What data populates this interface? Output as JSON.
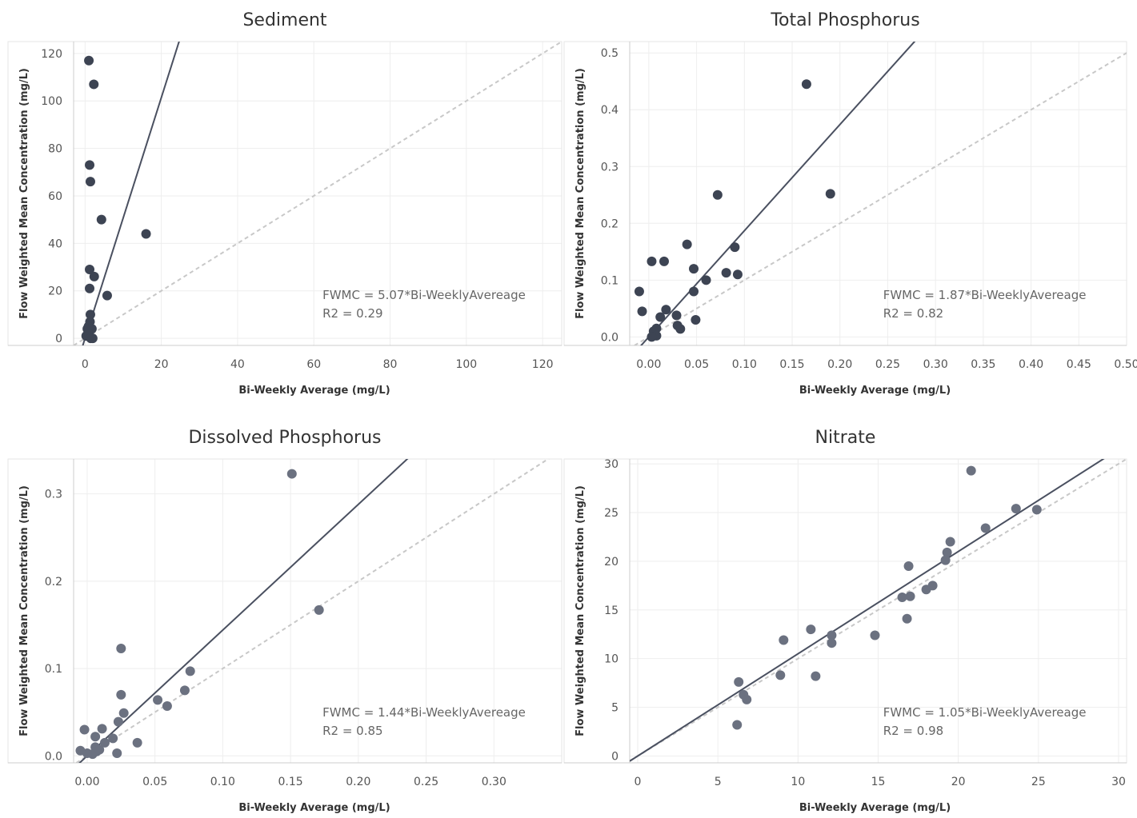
{
  "chart_data": [
    {
      "type": "scatter",
      "title": "Sediment",
      "xlabel": "Bi-Weekly Average (mg/L)",
      "ylabel": "Flow Weighted Mean Concentration (mg/L)",
      "xlim": [
        -3,
        125
      ],
      "ylim": [
        -3,
        125
      ],
      "xticks": [
        0,
        20,
        40,
        60,
        80,
        100,
        120
      ],
      "yticks": [
        0,
        20,
        40,
        60,
        80,
        100,
        120
      ],
      "tick_decimals": 0,
      "grid": true,
      "point_color": "#3d4453",
      "fit_slope": 5.07,
      "annotation": [
        "FWMC = 5.07*Bi-WeeklyAvereage",
        "R2 = 0.29"
      ],
      "points": [
        [
          1.0,
          117
        ],
        [
          2.3,
          107
        ],
        [
          1.2,
          73
        ],
        [
          1.4,
          66
        ],
        [
          4.3,
          50
        ],
        [
          16.0,
          44
        ],
        [
          1.2,
          29
        ],
        [
          2.4,
          26
        ],
        [
          1.2,
          21
        ],
        [
          5.8,
          18
        ],
        [
          1.4,
          10
        ],
        [
          1.3,
          7
        ],
        [
          0.9,
          5
        ],
        [
          0.6,
          4
        ],
        [
          1.8,
          4
        ],
        [
          0.3,
          1
        ],
        [
          1.0,
          2
        ],
        [
          1.5,
          0
        ],
        [
          2.0,
          0
        ]
      ]
    },
    {
      "type": "scatter",
      "title": "Total Phosphorus",
      "xlabel": "Bi-Weekly Average (mg/L)",
      "ylabel": "Flow Weighted Mean Concentration (mg/L)",
      "xlim": [
        -0.02,
        0.5
      ],
      "ylim": [
        -0.015,
        0.52
      ],
      "xticks": [
        0.0,
        0.05,
        0.1,
        0.15,
        0.2,
        0.25,
        0.3,
        0.35,
        0.4,
        0.45,
        0.5
      ],
      "yticks": [
        0.0,
        0.1,
        0.2,
        0.3,
        0.4,
        0.5
      ],
      "tick_decimals": 2,
      "ytick_decimals": 1,
      "grid": true,
      "point_color": "#3d4453",
      "fit_slope": 1.87,
      "annotation": [
        "FWMC = 1.87*Bi-WeeklyAvereage",
        "R2 = 0.82"
      ],
      "points": [
        [
          0.165,
          0.445
        ],
        [
          0.072,
          0.25
        ],
        [
          0.19,
          0.252
        ],
        [
          0.04,
          0.163
        ],
        [
          0.09,
          0.158
        ],
        [
          0.003,
          0.133
        ],
        [
          0.016,
          0.133
        ],
        [
          0.047,
          0.12
        ],
        [
          0.081,
          0.113
        ],
        [
          0.093,
          0.11
        ],
        [
          0.06,
          0.1
        ],
        [
          -0.01,
          0.08
        ],
        [
          0.047,
          0.08
        ],
        [
          -0.007,
          0.045
        ],
        [
          0.018,
          0.048
        ],
        [
          0.029,
          0.038
        ],
        [
          0.012,
          0.035
        ],
        [
          0.049,
          0.03
        ],
        [
          0.03,
          0.02
        ],
        [
          0.033,
          0.014
        ],
        [
          0.008,
          0.015
        ],
        [
          0.005,
          0.01
        ],
        [
          0.008,
          0.002
        ],
        [
          0.003,
          0.0
        ]
      ]
    },
    {
      "type": "scatter",
      "title": "Dissolved Phosphorus",
      "xlabel": "Bi-Weekly Average (mg/L)",
      "ylabel": "Flow Weighted Mean Concentration (mg/L)",
      "xlim": [
        -0.01,
        0.35
      ],
      "ylim": [
        -0.008,
        0.34
      ],
      "xticks": [
        0.0,
        0.05,
        0.1,
        0.15,
        0.2,
        0.25,
        0.3
      ],
      "yticks": [
        0.0,
        0.1,
        0.2,
        0.3
      ],
      "tick_decimals": 2,
      "ytick_decimals": 1,
      "grid": true,
      "point_color": "#6b7180",
      "fit_slope": 1.44,
      "annotation": [
        "FWMC = 1.44*Bi-WeeklyAvereage",
        "R2 = 0.85"
      ],
      "points": [
        [
          0.151,
          0.323
        ],
        [
          0.171,
          0.167
        ],
        [
          0.025,
          0.123
        ],
        [
          0.076,
          0.097
        ],
        [
          0.025,
          0.07
        ],
        [
          0.072,
          0.075
        ],
        [
          0.052,
          0.064
        ],
        [
          0.059,
          0.057
        ],
        [
          0.027,
          0.049
        ],
        [
          0.023,
          0.039
        ],
        [
          -0.002,
          0.03
        ],
        [
          0.011,
          0.031
        ],
        [
          0.006,
          0.022
        ],
        [
          0.019,
          0.02
        ],
        [
          0.013,
          0.015
        ],
        [
          0.006,
          0.01
        ],
        [
          0.007,
          0.005
        ],
        [
          0.004,
          0.002
        ],
        [
          0.022,
          0.003
        ],
        [
          0.037,
          0.015
        ],
        [
          -0.005,
          0.006
        ],
        [
          0.0,
          0.003
        ],
        [
          0.009,
          0.007
        ]
      ]
    },
    {
      "type": "scatter",
      "title": "Nitrate",
      "xlabel": "Bi-Weekly Average (mg/L)",
      "ylabel": "Flow Weighted Mean Concentration (mg/L)",
      "xlim": [
        -0.5,
        30.5
      ],
      "ylim": [
        -0.7,
        30.5
      ],
      "xticks": [
        0,
        5,
        10,
        15,
        20,
        25,
        30
      ],
      "yticks": [
        0,
        5,
        10,
        15,
        20,
        25,
        30
      ],
      "tick_decimals": 0,
      "grid": true,
      "point_color": "#6b7180",
      "fit_slope": 1.05,
      "annotation": [
        "FWMC = 1.05*Bi-WeeklyAvereage",
        "R2 = 0.98"
      ],
      "points": [
        [
          20.8,
          29.3
        ],
        [
          23.6,
          25.4
        ],
        [
          24.9,
          25.3
        ],
        [
          21.7,
          23.4
        ],
        [
          19.5,
          22.0
        ],
        [
          19.3,
          20.9
        ],
        [
          19.2,
          20.1
        ],
        [
          16.9,
          19.5
        ],
        [
          18.4,
          17.5
        ],
        [
          18.0,
          17.1
        ],
        [
          17.0,
          16.4
        ],
        [
          16.5,
          16.3
        ],
        [
          16.8,
          14.1
        ],
        [
          10.8,
          13.0
        ],
        [
          12.1,
          12.4
        ],
        [
          14.8,
          12.4
        ],
        [
          9.1,
          11.9
        ],
        [
          12.1,
          11.6
        ],
        [
          8.9,
          8.3
        ],
        [
          11.1,
          8.2
        ],
        [
          6.3,
          7.6
        ],
        [
          6.6,
          6.3
        ],
        [
          6.8,
          5.8
        ],
        [
          6.2,
          3.2
        ]
      ]
    }
  ]
}
